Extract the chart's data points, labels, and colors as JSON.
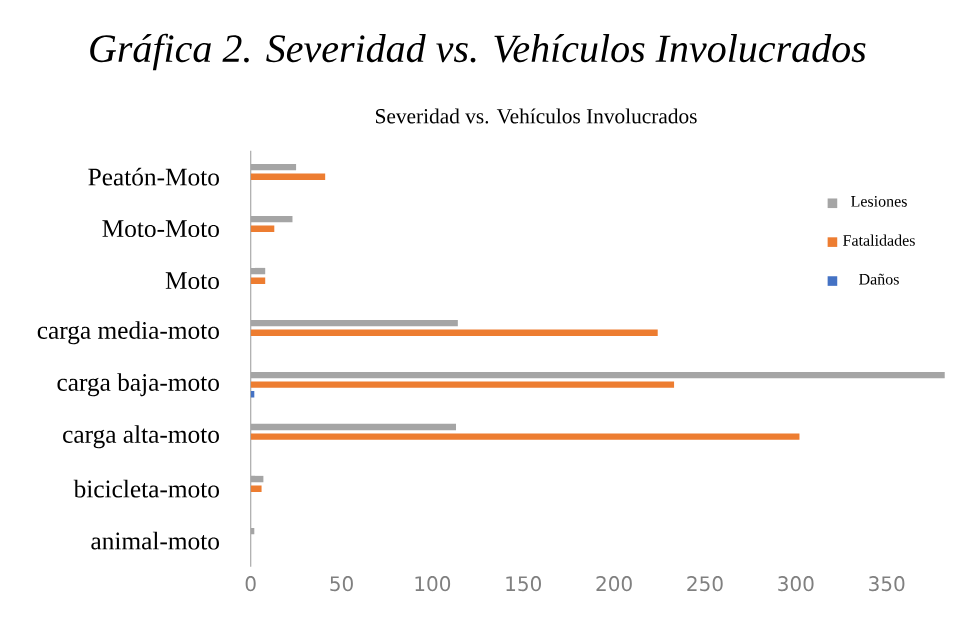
{
  "chart_data": {
    "type": "bar",
    "orientation": "horizontal",
    "title": "Gráfica 2. Severidad vs. Vehículos Involucrados",
    "subtitle": "Severidad vs. Vehículos Involucrados",
    "categories": [
      "Peatón-Moto",
      "Moto-Moto",
      "Moto",
      "carga media-moto",
      "carga baja-moto",
      "carga alta-moto",
      "bicicleta-moto",
      "animal-moto"
    ],
    "series": [
      {
        "name": "Lesiones",
        "color": "#a5a5a5",
        "values": [
          25,
          23,
          8,
          114,
          382,
          113,
          7,
          2
        ]
      },
      {
        "name": "Fatalidades",
        "color": "#ed7d31",
        "values": [
          41,
          13,
          8,
          224,
          233,
          302,
          6,
          null
        ]
      },
      {
        "name": "Daños",
        "color": "#4472c4",
        "values": [
          null,
          null,
          null,
          null,
          2,
          null,
          null,
          null
        ]
      }
    ],
    "xlim": [
      0,
      385
    ],
    "xticks": [
      0,
      50,
      100,
      150,
      200,
      250,
      300,
      350
    ],
    "grid": false,
    "legend": "right"
  }
}
